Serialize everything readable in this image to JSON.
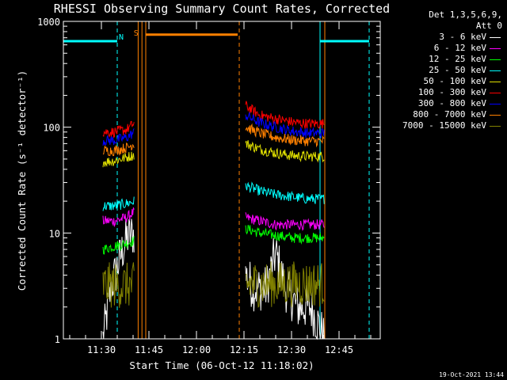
{
  "chart_data": {
    "type": "line",
    "title": "RHESSI Observing Summary Count Rates, Corrected",
    "xlabel": "Start Time (06-Oct-12 11:18:02)",
    "ylabel": "Corrected Count Rate (s⁻¹ detector⁻¹)",
    "yscale": "log",
    "ylim": [
      1,
      1000
    ],
    "xlim": [
      "11:18",
      "12:58"
    ],
    "y_tick_labels": [
      "1",
      "10",
      "100",
      "1000"
    ],
    "x_tick_labels": [
      "11:30",
      "11:45",
      "12:00",
      "12:15",
      "12:30",
      "12:45"
    ],
    "x_ticks": [
      "11:30",
      "11:45",
      "12:00",
      "12:15",
      "12:30",
      "12:45"
    ],
    "legend_header": [
      "Det 1,3,5,6,9,",
      "Att 0"
    ],
    "legend_position": "right",
    "series": [
      {
        "name": "3 - 6 keV",
        "color": "#ffffff",
        "segments": [
          {
            "x": [
              "11:30.5",
              "11:33",
              "11:36",
              "11:38",
              "11:40.5"
            ],
            "y": [
              1,
              3,
              6,
              9,
              10
            ]
          },
          {
            "x": [
              "12:15.5",
              "12:18",
              "12:22",
              "12:25",
              "12:28",
              "12:32",
              "12:36",
              "12:40.5"
            ],
            "y": [
              4,
              3,
              3,
              6.5,
              3,
              2,
              2,
              1
            ]
          }
        ]
      },
      {
        "name": "6 - 12 keV",
        "color": "#ff00ff",
        "segments": [
          {
            "x": [
              "11:30.5",
              "11:34",
              "11:38",
              "11:40.5"
            ],
            "y": [
              13,
              13,
              14,
              16
            ]
          },
          {
            "x": [
              "12:15.5",
              "12:20",
              "12:25",
              "12:30",
              "12:35",
              "12:40.5"
            ],
            "y": [
              14,
              13,
              12,
              12,
              12,
              12
            ]
          }
        ]
      },
      {
        "name": "12 - 25 keV",
        "color": "#00ff00",
        "segments": [
          {
            "x": [
              "11:30.5",
              "11:34",
              "11:38",
              "11:40.5"
            ],
            "y": [
              7,
              7.5,
              8,
              8.5
            ]
          },
          {
            "x": [
              "12:15.5",
              "12:20",
              "12:25",
              "12:30",
              "12:35",
              "12:40.5"
            ],
            "y": [
              11,
              10,
              9.5,
              9,
              9,
              9
            ]
          }
        ]
      },
      {
        "name": "25 - 50 keV",
        "color": "#00ffff",
        "segments": [
          {
            "x": [
              "11:30.5",
              "11:34",
              "11:38",
              "11:40.5"
            ],
            "y": [
              18,
              18,
              19,
              20
            ]
          },
          {
            "x": [
              "12:15.5",
              "12:20",
              "12:25",
              "12:30",
              "12:35",
              "12:40.5"
            ],
            "y": [
              28,
              25,
              23,
              22,
              21,
              21
            ]
          }
        ]
      },
      {
        "name": "50 - 100 keV",
        "color": "#e0e000",
        "segments": [
          {
            "x": [
              "11:30.5",
              "11:34",
              "11:38",
              "11:40.5"
            ],
            "y": [
              47,
              48,
              52,
              55
            ]
          },
          {
            "x": [
              "12:15.5",
              "12:20",
              "12:25",
              "12:30",
              "12:35",
              "12:40.5"
            ],
            "y": [
              70,
              62,
              57,
              54,
              53,
              53
            ]
          }
        ]
      },
      {
        "name": "100 - 300 keV",
        "color": "#ff0000",
        "segments": [
          {
            "x": [
              "11:30.5",
              "11:34",
              "11:38",
              "11:40.5"
            ],
            "y": [
              90,
              90,
              95,
              110
            ]
          },
          {
            "x": [
              "12:15.5",
              "12:20",
              "12:25",
              "12:30",
              "12:35",
              "12:40.5"
            ],
            "y": [
              160,
              130,
              120,
              112,
              108,
              108
            ]
          }
        ]
      },
      {
        "name": "300 - 800 keV",
        "color": "#0000ff",
        "segments": [
          {
            "x": [
              "11:30.5",
              "11:34",
              "11:38",
              "11:40.5"
            ],
            "y": [
              75,
              75,
              80,
              90
            ]
          },
          {
            "x": [
              "12:15.5",
              "12:20",
              "12:25",
              "12:30",
              "12:35",
              "12:40.5"
            ],
            "y": [
              130,
              110,
              100,
              92,
              88,
              88
            ]
          }
        ]
      },
      {
        "name": "800 - 7000 keV",
        "color": "#ff8000",
        "segments": [
          {
            "x": [
              "11:30.5",
              "11:34",
              "11:38",
              "11:40.5"
            ],
            "y": [
              60,
              60,
              64,
              70
            ]
          },
          {
            "x": [
              "12:15.5",
              "12:20",
              "12:25",
              "12:30",
              "12:35",
              "12:40.5"
            ],
            "y": [
              100,
              88,
              80,
              76,
              74,
              74
            ]
          }
        ]
      },
      {
        "name": "7000 - 15000 keV",
        "color": "#808000",
        "segments": [
          {
            "x": [
              "11:30.5",
              "11:35",
              "11:40.5"
            ],
            "y": [
              3.2,
              3.2,
              3.2
            ]
          },
          {
            "x": [
              "12:15.5",
              "12:25",
              "12:35",
              "12:40.5"
            ],
            "y": [
              3.3,
              3.3,
              3.3,
              3.3
            ]
          }
        ]
      }
    ],
    "annotations": [
      {
        "label": "N",
        "color": "#00ffff",
        "x": "11:35"
      },
      {
        "label": "S",
        "color": "#ff8000",
        "x": "11:41.7"
      }
    ],
    "intervals": [
      {
        "kind": "night",
        "color": "#00ffff",
        "x_start": "11:18",
        "x_end": "11:35",
        "y": 650
      },
      {
        "kind": "night",
        "color": "#00ffff",
        "x_start": "12:39",
        "x_end": "12:54.5",
        "y": 650
      },
      {
        "kind": "saa",
        "color": "#ff8000",
        "x_start": "11:44",
        "x_end": "12:13",
        "y": 750
      }
    ],
    "vlines": [
      {
        "x": "11:18",
        "color": "#00ffff",
        "style": "solid"
      },
      {
        "x": "11:35",
        "color": "#00ffff",
        "style": "dashed"
      },
      {
        "x": "12:39",
        "color": "#00ffff",
        "style": "solid"
      },
      {
        "x": "12:54.5",
        "color": "#00ffff",
        "style": "dashed"
      },
      {
        "x": "11:41.6",
        "color": "#ff8000",
        "style": "solid"
      },
      {
        "x": "11:42.8",
        "color": "#ff8000",
        "style": "solid"
      },
      {
        "x": "11:44",
        "color": "#ff8000",
        "style": "solid"
      },
      {
        "x": "12:13.5",
        "color": "#ff8000",
        "style": "dashed"
      },
      {
        "x": "12:40.5",
        "color": "#ff8000",
        "style": "solid"
      }
    ],
    "footer": "19-Oct-2021 13:44",
    "colors": {
      "background": "#000000",
      "axes": "#ffffff"
    }
  }
}
